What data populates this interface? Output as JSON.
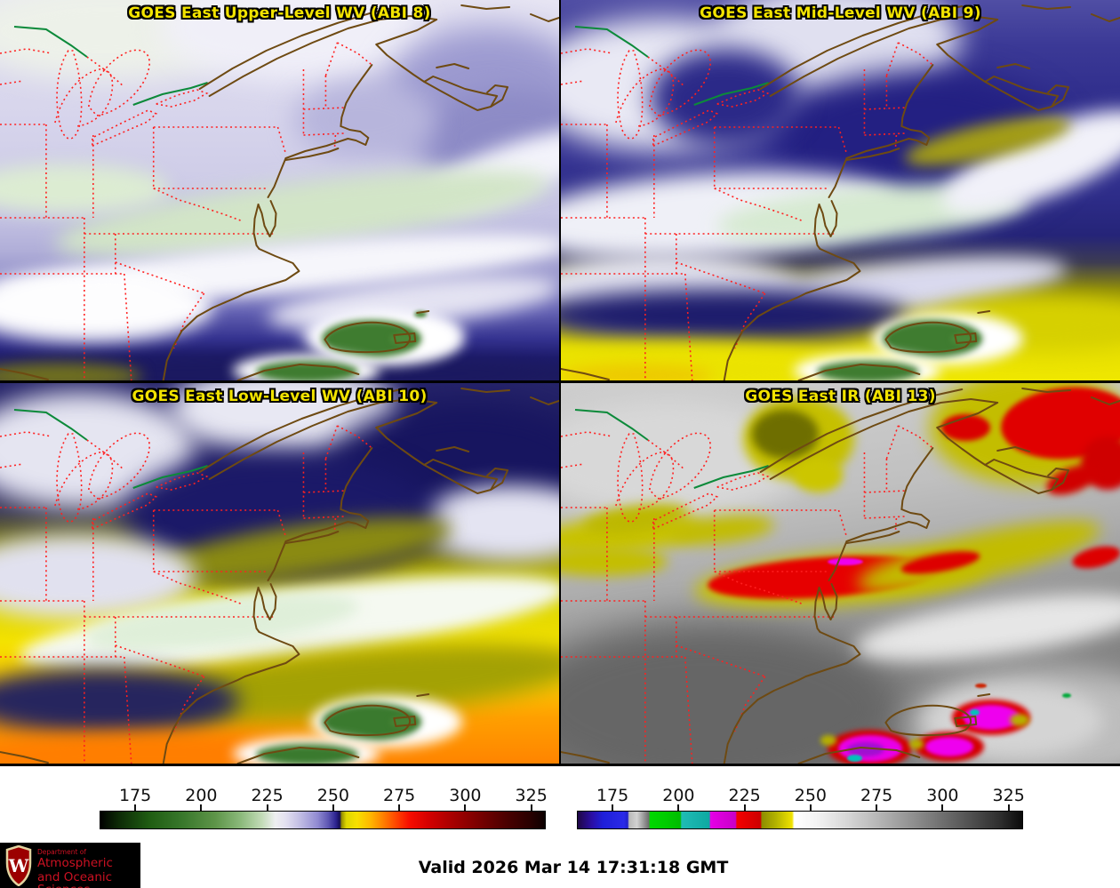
{
  "panels": [
    {
      "title": "GOES East Upper-Level WV (ABI 8)"
    },
    {
      "title": "GOES East Mid-Level WV (ABI 9)"
    },
    {
      "title": "GOES East Low-Level WV (ABI 10)"
    },
    {
      "title": "GOES East IR (ABI 13)"
    }
  ],
  "style": {
    "title_color": "#f2e300",
    "state_border_red": "#ff2020",
    "coastline_brown": "#6e4a12",
    "international_green": "#0c8a3a"
  },
  "colorbars": [
    {
      "name": "water-vapor-enhancement-scale",
      "min": 161.5,
      "max": 330.5,
      "ticks": [
        175,
        200,
        225,
        250,
        275,
        300,
        325
      ],
      "stops": [
        [
          161.5,
          "#000000"
        ],
        [
          168,
          "#0c2806"
        ],
        [
          180,
          "#1f5c12"
        ],
        [
          192,
          "#37762a"
        ],
        [
          205,
          "#5d9448"
        ],
        [
          215,
          "#8cba7c"
        ],
        [
          223,
          "#c3dcb8"
        ],
        [
          228,
          "#eeeff0"
        ],
        [
          232,
          "#e3e0f0"
        ],
        [
          238,
          "#bdb9e2"
        ],
        [
          244,
          "#918bd2"
        ],
        [
          248,
          "#5f58b4"
        ],
        [
          251,
          "#2d2490"
        ],
        [
          252.5,
          "#150d55"
        ],
        [
          253.2,
          "#978e00"
        ],
        [
          255,
          "#ded600"
        ],
        [
          259,
          "#f7e000"
        ],
        [
          264,
          "#ffb800"
        ],
        [
          269,
          "#ff8000"
        ],
        [
          274,
          "#ff4400"
        ],
        [
          279,
          "#f70c00"
        ],
        [
          286,
          "#d50000"
        ],
        [
          295,
          "#a90000"
        ],
        [
          305,
          "#7b0000"
        ],
        [
          315,
          "#4e0000"
        ],
        [
          325,
          "#280000"
        ],
        [
          330.5,
          "#0c0000"
        ]
      ]
    },
    {
      "name": "infrared-enhancement-scale",
      "min": 161.5,
      "max": 330.5,
      "ticks": [
        175,
        200,
        225,
        250,
        275,
        300,
        325
      ],
      "stops": [
        [
          161.5,
          "#1f0645"
        ],
        [
          167,
          "#2a0ea6"
        ],
        [
          171,
          "#1f1fd8"
        ],
        [
          179,
          "#2a2ae8"
        ],
        [
          180.5,
          "#2222c8"
        ],
        [
          181,
          "#b9b9b9"
        ],
        [
          184,
          "#d2d2d2"
        ],
        [
          188.5,
          "#6e6e6e"
        ],
        [
          189,
          "#00d800"
        ],
        [
          195,
          "#00cc00"
        ],
        [
          200.5,
          "#00bb00"
        ],
        [
          201,
          "#1fbcb4"
        ],
        [
          211.5,
          "#0fa8a2"
        ],
        [
          212,
          "#e600e6"
        ],
        [
          221.5,
          "#c800c8"
        ],
        [
          222,
          "#f50000"
        ],
        [
          231,
          "#cc0000"
        ],
        [
          231.5,
          "#8e8e00"
        ],
        [
          237,
          "#b4b400"
        ],
        [
          243,
          "#f0e200"
        ],
        [
          243.8,
          "#ffffff"
        ],
        [
          252,
          "#f4f4f4"
        ],
        [
          265,
          "#d4d4d4"
        ],
        [
          280,
          "#aaaaaa"
        ],
        [
          295,
          "#7e7e7e"
        ],
        [
          310,
          "#525252"
        ],
        [
          322,
          "#2e2e2e"
        ],
        [
          330.5,
          "#0a0a0a"
        ]
      ]
    }
  ],
  "footer": {
    "valid_time": "Valid 2026 Mar 14 17:31:18 GMT"
  },
  "logo": {
    "institution_letter": "W",
    "dept_line1": "Department of",
    "dept_line2": "Atmospheric",
    "dept_line3": "and Oceanic Sciences",
    "text_color": "#cc1122",
    "bg_color": "#000000"
  }
}
